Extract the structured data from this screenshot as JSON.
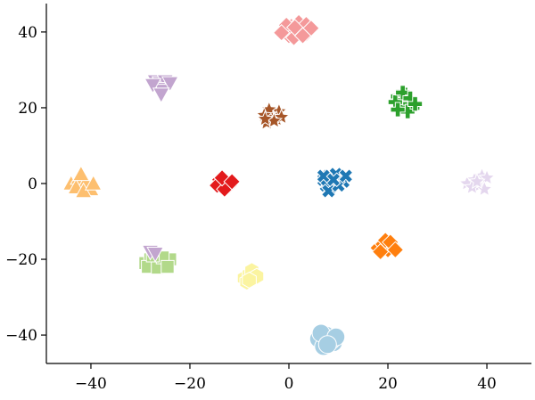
{
  "chart_data": {
    "type": "scatter",
    "title": "",
    "xlabel": "",
    "ylabel": "",
    "xlim": [
      -49,
      49
    ],
    "ylim": [
      -47.5,
      47.5
    ],
    "xticks": [
      -40,
      -20,
      0,
      20,
      40
    ],
    "yticks": [
      -40,
      -20,
      0,
      20,
      40
    ],
    "xtick_labels": [
      "−40",
      "−20",
      "0",
      "20",
      "40"
    ],
    "ytick_labels": [
      "−40",
      "−20",
      "0",
      "20",
      "40"
    ],
    "grid": false,
    "legend": "none",
    "series": [
      {
        "marker": "diamond",
        "color": "#f4999a",
        "points": [
          [
            -1,
            40.5
          ],
          [
            0.5,
            41.5
          ],
          [
            1.5,
            40
          ],
          [
            2.5,
            41
          ],
          [
            3.5,
            39.5
          ],
          [
            0,
            39
          ],
          [
            2,
            42.5
          ],
          [
            3.5,
            42
          ],
          [
            -0.5,
            41.8
          ],
          [
            1,
            38.5
          ],
          [
            4.5,
            41
          ],
          [
            2.8,
            39
          ],
          [
            -1.5,
            39.8
          ],
          [
            1.2,
            41.2
          ]
        ]
      },
      {
        "marker": "triangle-down",
        "color": "#c2a5cf",
        "points": [
          [
            -27,
            27
          ],
          [
            -26,
            26.5
          ],
          [
            -25,
            27
          ],
          [
            -26.5,
            25
          ],
          [
            -25.5,
            24.5
          ],
          [
            -24,
            26.5
          ],
          [
            -27.5,
            26
          ],
          [
            -25.8,
            23.5
          ]
        ]
      },
      {
        "marker": "plus",
        "color": "#2ca02c",
        "points": [
          [
            22,
            23
          ],
          [
            23,
            22
          ],
          [
            24,
            21
          ],
          [
            22.5,
            20
          ],
          [
            23.5,
            23.5
          ],
          [
            25,
            20
          ],
          [
            21.5,
            21.5
          ],
          [
            24,
            19
          ],
          [
            23,
            24
          ],
          [
            24.5,
            22.5
          ],
          [
            22,
            19.5
          ],
          [
            25.5,
            21
          ]
        ]
      },
      {
        "marker": "star",
        "color": "#a65628",
        "points": [
          [
            -4.5,
            16
          ],
          [
            -3.5,
            18
          ],
          [
            -2,
            19
          ],
          [
            -4,
            19.5
          ],
          [
            -2.5,
            17
          ],
          [
            -5,
            18
          ],
          [
            -1.5,
            17.5
          ],
          [
            -3,
            16.5
          ],
          [
            -4.8,
            17
          ]
        ]
      },
      {
        "marker": "triangle-up",
        "color": "#fdbf6f",
        "points": [
          [
            -44,
            0
          ],
          [
            -42.5,
            1.5
          ],
          [
            -41,
            0.5
          ],
          [
            -43,
            -1
          ],
          [
            -40,
            -1.5
          ],
          [
            -41.5,
            -2
          ],
          [
            -42,
            2.5
          ],
          [
            -39.5,
            0
          ]
        ]
      },
      {
        "marker": "diamond",
        "color": "#e31a1c",
        "points": [
          [
            -14,
            1
          ],
          [
            -13,
            0
          ],
          [
            -12,
            -0.5
          ],
          [
            -14.5,
            -0.5
          ],
          [
            -13,
            -1.5
          ],
          [
            -13.5,
            1.5
          ],
          [
            -11.5,
            0.5
          ]
        ]
      },
      {
        "marker": "x",
        "color": "#1f78b4",
        "points": [
          [
            7,
            1
          ],
          [
            8,
            2
          ],
          [
            9,
            0
          ],
          [
            10,
            1.5
          ],
          [
            8.5,
            -1
          ],
          [
            7.5,
            -0.5
          ],
          [
            9.5,
            2.5
          ],
          [
            11,
            0.5
          ],
          [
            8,
            -2
          ],
          [
            10,
            -0.5
          ],
          [
            7,
            2
          ],
          [
            9,
            1
          ],
          [
            11.5,
            2
          ]
        ]
      },
      {
        "marker": "star",
        "color": "#e4d7ee",
        "points": [
          [
            36,
            0
          ],
          [
            37.5,
            1
          ],
          [
            39,
            2
          ],
          [
            38.5,
            -0.5
          ],
          [
            40,
            1.5
          ],
          [
            37,
            -1
          ],
          [
            39.5,
            -1.5
          ],
          [
            38,
            0.5
          ]
        ]
      },
      {
        "marker": "square",
        "color": "#b2d98a",
        "points": [
          [
            -29,
            -21
          ],
          [
            -28,
            -20
          ],
          [
            -27,
            -21.5
          ],
          [
            -26,
            -20.5
          ],
          [
            -25,
            -21
          ],
          [
            -24,
            -20
          ],
          [
            -28.5,
            -22
          ],
          [
            -26.5,
            -22.2
          ],
          [
            -25.5,
            -19.5
          ],
          [
            -27.5,
            -19
          ],
          [
            -24.5,
            -22
          ]
        ]
      },
      {
        "marker": "triangle-down",
        "color": "#c2a5cf",
        "points": [
          [
            -28,
            -18
          ],
          [
            -27,
            -18.5
          ]
        ]
      },
      {
        "marker": "diamond",
        "color": "#ff7f0e",
        "points": [
          [
            18,
            -17
          ],
          [
            19,
            -16
          ],
          [
            20,
            -17.5
          ],
          [
            21,
            -16.5
          ],
          [
            19.5,
            -15
          ],
          [
            18.5,
            -18
          ],
          [
            20.5,
            -15.5
          ],
          [
            21.5,
            -17.5
          ]
        ]
      },
      {
        "marker": "hexagon",
        "color": "#fbf4a0",
        "points": [
          [
            -9,
            -25
          ],
          [
            -8,
            -24
          ],
          [
            -7,
            -25
          ],
          [
            -8.5,
            -26
          ],
          [
            -7.5,
            -23
          ],
          [
            -6.5,
            -24.5
          ],
          [
            -8,
            -25.5
          ]
        ]
      },
      {
        "marker": "circle",
        "color": "#a6cee3",
        "points": [
          [
            6,
            -41
          ],
          [
            7.5,
            -40
          ],
          [
            9,
            -42
          ],
          [
            7,
            -43
          ],
          [
            8.5,
            -41.5
          ],
          [
            6.5,
            -39.5
          ],
          [
            9.5,
            -40.5
          ],
          [
            7.8,
            -42.5
          ]
        ]
      }
    ]
  }
}
